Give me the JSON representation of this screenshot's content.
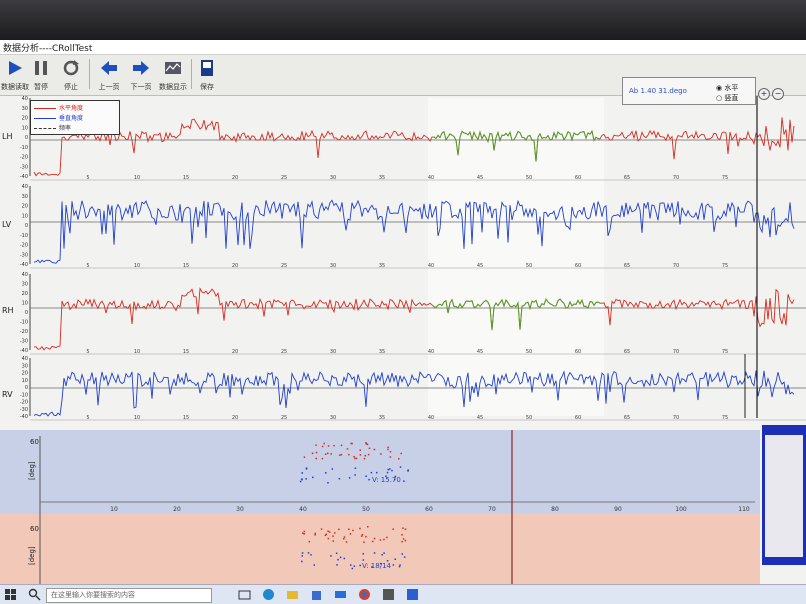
{
  "window": {
    "title": "数据分析----CRollTest"
  },
  "toolbar": {
    "buttons": [
      {
        "label": "数据读取",
        "icon": "play-icon"
      },
      {
        "label": "暂停",
        "icon": "pause-icon"
      },
      {
        "label": "停止",
        "icon": "refresh-icon"
      },
      {
        "label": "上一页",
        "icon": "arrow-left-icon"
      },
      {
        "label": "下一页",
        "icon": "arrow-right-icon"
      },
      {
        "label": "数据显示",
        "icon": "chart-icon"
      },
      {
        "label": "保存",
        "icon": "save-icon"
      }
    ]
  },
  "info": {
    "coordinate": "Ab 1.40 31.dego",
    "radio_1": "水平",
    "radio_2": "竖直"
  },
  "legend": {
    "entries": [
      {
        "label": "水平角度",
        "color": "#d62a1e"
      },
      {
        "label": "垂直角度",
        "color": "#1f3fcf"
      },
      {
        "label": "频率",
        "color": "#333333"
      }
    ]
  },
  "channels": [
    {
      "label": "LH",
      "color": "#d62a1e"
    },
    {
      "label": "LV",
      "color": "#1f3fcf"
    },
    {
      "label": "RH",
      "color": "#d62a1e"
    },
    {
      "label": "RV",
      "color": "#1f3fcf"
    }
  ],
  "y_ticks": [
    "40",
    "30",
    "20",
    "10",
    "0",
    "-10",
    "-20",
    "-30",
    "-40"
  ],
  "x_ticks_top": [
    "5",
    "10",
    "15",
    "20",
    "25",
    "30",
    "35",
    "40",
    "45",
    "50",
    "60",
    "65",
    "70",
    "75"
  ],
  "x_ticks_bottom": [
    "10",
    "20",
    "30",
    "40",
    "50",
    "60",
    "70",
    "80",
    "90",
    "100",
    "110"
  ],
  "panels": [
    {
      "ylabel": "[deg]",
      "ymax": "60",
      "annotation": "V: 15.70",
      "bg": "#c8d0e8"
    },
    {
      "ylabel": "[deg]",
      "ymax": "60",
      "annotation": "V: 18/14",
      "bg": "#f2c8b8"
    }
  ],
  "taskbar": {
    "search_placeholder": "在这里输入你要搜索的内容"
  },
  "colors": {
    "red_trace": "#d62a1e",
    "blue_trace": "#1f3fcf",
    "green_trace": "#4fa02a",
    "panel_border": "#1d2fb8"
  }
}
